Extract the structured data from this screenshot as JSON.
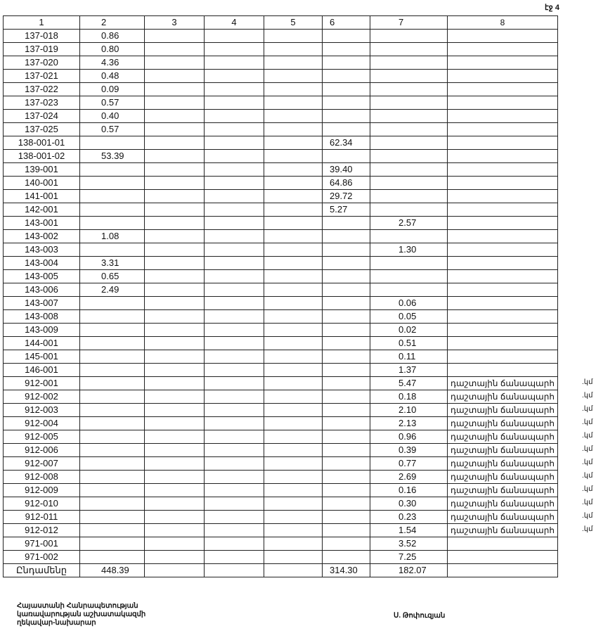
{
  "page_label": "էջ 4",
  "headers": [
    "1",
    "2",
    "3",
    "4",
    "5",
    "6",
    "7",
    "8"
  ],
  "rows": [
    [
      "137-018",
      "0.86",
      "",
      "",
      ""
    ],
    [
      "137-019",
      "0.80",
      "",
      "",
      ""
    ],
    [
      "137-020",
      "4.36",
      "",
      "",
      ""
    ],
    [
      "137-021",
      "0.48",
      "",
      "",
      ""
    ],
    [
      "137-022",
      "0.09",
      "",
      "",
      ""
    ],
    [
      "137-023",
      "0.57",
      "",
      "",
      ""
    ],
    [
      "137-024",
      "0.40",
      "",
      "",
      ""
    ],
    [
      "137-025",
      "0.57",
      "",
      "",
      ""
    ],
    [
      "138-001-01",
      "",
      "62.34",
      "",
      ""
    ],
    [
      "138-001-02",
      "53.39",
      "",
      "",
      ""
    ],
    [
      "139-001",
      "",
      "39.40",
      "",
      ""
    ],
    [
      "140-001",
      "",
      "64.86",
      "",
      ""
    ],
    [
      "141-001",
      "",
      "29.72",
      "",
      ""
    ],
    [
      "142-001",
      "",
      "5.27",
      "",
      ""
    ],
    [
      "143-001",
      "",
      "",
      "2.57",
      ""
    ],
    [
      "143-002",
      "1.08",
      "",
      "",
      ""
    ],
    [
      "143-003",
      "",
      "",
      "1.30",
      ""
    ],
    [
      "143-004",
      "3.31",
      "",
      "",
      ""
    ],
    [
      "143-005",
      "0.65",
      "",
      "",
      ""
    ],
    [
      "143-006",
      "2.49",
      "",
      "",
      ""
    ],
    [
      "143-007",
      "",
      "",
      "0.06",
      ""
    ],
    [
      "143-008",
      "",
      "",
      "0.05",
      ""
    ],
    [
      "143-009",
      "",
      "",
      "0.02",
      ""
    ],
    [
      "144-001",
      "",
      "",
      "0.51",
      ""
    ],
    [
      "145-001",
      "",
      "",
      "0.11",
      ""
    ],
    [
      "146-001",
      "",
      "",
      "1.37",
      ""
    ],
    [
      "912-001",
      "",
      "",
      "5.47",
      "դաշտային ճանապարհ"
    ],
    [
      "912-002",
      "",
      "",
      "0.18",
      "դաշտային ճանապարհ"
    ],
    [
      "912-003",
      "",
      "",
      "2.10",
      "դաշտային ճանապարհ"
    ],
    [
      "912-004",
      "",
      "",
      "2.13",
      "դաշտային ճանապարհ"
    ],
    [
      "912-005",
      "",
      "",
      "0.96",
      "դաշտային ճանապարհ"
    ],
    [
      "912-006",
      "",
      "",
      "0.39",
      "դաշտային ճանապարհ"
    ],
    [
      "912-007",
      "",
      "",
      "0.77",
      "դաշտային ճանապարհ"
    ],
    [
      "912-008",
      "",
      "",
      "2.69",
      "դաշտային ճանապարհ"
    ],
    [
      "912-009",
      "",
      "",
      "0.16",
      "դաշտային ճանապարհ"
    ],
    [
      "912-010",
      "",
      "",
      "0.30",
      "դաշտային ճանապարհ"
    ],
    [
      "912-011",
      "",
      "",
      "0.23",
      "դաշտային ճանապարհ"
    ],
    [
      "912-012",
      "",
      "",
      "1.54",
      "դաշտային ճանապարհ"
    ],
    [
      "971-001",
      "",
      "",
      "3.52",
      ""
    ],
    [
      "971-002",
      "",
      "",
      "7.25",
      ""
    ]
  ],
  "suffix": ".կմ",
  "total": {
    "label": "Ընդամենը",
    "col2": "448.39",
    "col6": "314.30",
    "col7": "182.07"
  },
  "footer": {
    "line1": "Հայաստանի Հանրապետության",
    "line2": "կառավարության աշխատակազմի",
    "line3": "ղեկավար-նախարար",
    "signature": "Ս. Թոփուզյան"
  }
}
